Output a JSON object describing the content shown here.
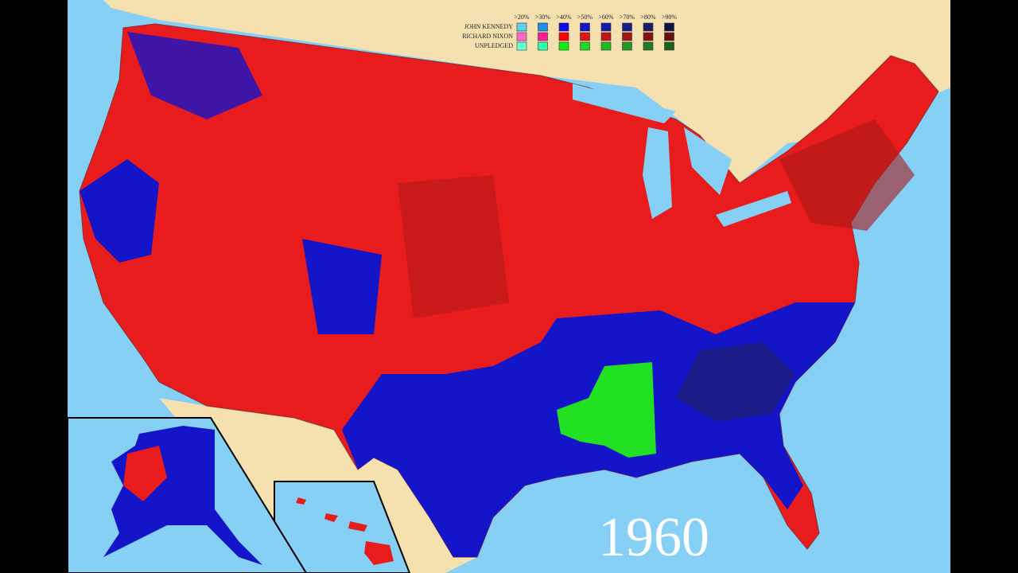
{
  "legend": {
    "columns": [
      ">20%",
      ">30%",
      ">40%",
      ">50%",
      ">60%",
      ">70%",
      ">80%",
      ">90%"
    ],
    "rows": [
      {
        "label": "JOHN KENNEDY",
        "colors": [
          "#5ad2f0",
          "#1e8fe6",
          "#0a0af0",
          "#1414c8",
          "#1a1aa8",
          "#1c1c88",
          "#1a1a66",
          "#121248"
        ]
      },
      {
        "label": "RICHARD NIXON",
        "colors": [
          "#ff6ad0",
          "#ff1a9a",
          "#ff0000",
          "#e01414",
          "#c41414",
          "#a51414",
          "#861212",
          "#641010"
        ]
      },
      {
        "label": "UNPLEDGED",
        "colors": [
          "#6affd6",
          "#2effa8",
          "#10f010",
          "#22d622",
          "#22b822",
          "#229a22",
          "#1f7c1f",
          "#1a621a"
        ]
      }
    ]
  },
  "year": "1960"
}
